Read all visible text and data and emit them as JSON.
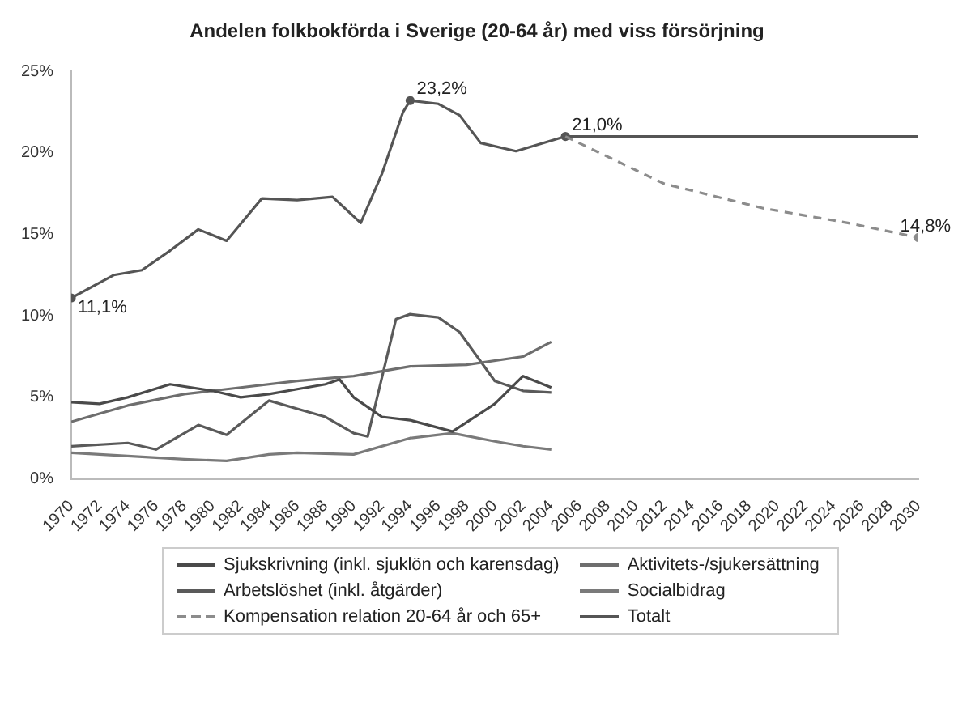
{
  "chart_data": {
    "type": "line",
    "title": "Andelen folkbokförda i Sverige (20-64 år) med viss försörjning",
    "series": [
      {
        "name": "Sjukskrivning (inkl. sjuklön och karensdag)",
        "color": "#4a4a4a",
        "x": [
          1970,
          1972,
          1974,
          1977,
          1980,
          1982,
          1984,
          1986,
          1988,
          1989,
          1990,
          1992,
          1994,
          1997,
          2000,
          2002,
          2004
        ],
        "values": [
          4.7,
          4.6,
          5.0,
          5.8,
          5.4,
          5.0,
          5.2,
          5.5,
          5.8,
          6.1,
          5.0,
          3.8,
          3.6,
          2.9,
          4.6,
          6.3,
          5.6
        ]
      },
      {
        "name": "Aktivitets-/sjukersättning",
        "color": "#6e6e6e",
        "x": [
          1970,
          1974,
          1978,
          1982,
          1986,
          1990,
          1994,
          1998,
          2002,
          2004
        ],
        "values": [
          3.5,
          4.5,
          5.2,
          5.6,
          6.0,
          6.3,
          6.9,
          7.0,
          7.5,
          8.4
        ]
      },
      {
        "name": "Arbetslöshet (inkl. åtgärder)",
        "color": "#5a5a5a",
        "x": [
          1970,
          1974,
          1976,
          1979,
          1981,
          1984,
          1986,
          1988,
          1990,
          1991,
          1993,
          1994,
          1996,
          1997.5,
          2000,
          2002,
          2004
        ],
        "values": [
          2.0,
          2.2,
          1.8,
          3.3,
          2.7,
          4.8,
          4.3,
          3.8,
          2.8,
          2.6,
          9.8,
          10.1,
          9.9,
          9.0,
          6.0,
          5.4,
          5.3
        ]
      },
      {
        "name": "Socialbidrag",
        "color": "#7a7a7a",
        "x": [
          1970,
          1974,
          1978,
          1981,
          1984,
          1986,
          1990,
          1994,
          1997,
          2000,
          2002,
          2004
        ],
        "values": [
          1.6,
          1.4,
          1.2,
          1.1,
          1.5,
          1.6,
          1.5,
          2.5,
          2.8,
          2.3,
          2.0,
          1.8
        ]
      },
      {
        "name": "Kompensation relation 20-64 år och 65+",
        "color": "#8c8c8c",
        "line_style": "dashed",
        "x": [
          2005,
          2012,
          2019,
          2025,
          2030
        ],
        "values": [
          21.0,
          18.1,
          16.6,
          15.7,
          14.8
        ],
        "value_labels": [
          null,
          null,
          null,
          null,
          "14,8%"
        ]
      },
      {
        "name": "Totalt",
        "color": "#555555",
        "x": [
          1970,
          1973,
          1975,
          1977,
          1979,
          1981,
          1983.5,
          1986,
          1988.5,
          1990.5,
          1992,
          1993.5,
          1994,
          1996,
          1997.5,
          1999,
          2001.5,
          2005,
          2030
        ],
        "values": [
          11.1,
          12.5,
          12.8,
          14.0,
          15.3,
          14.6,
          17.2,
          17.1,
          17.3,
          15.7,
          18.7,
          22.5,
          23.2,
          23.0,
          22.3,
          20.6,
          20.1,
          21.0,
          21.0
        ],
        "value_labels": [
          "11,1%",
          null,
          null,
          null,
          null,
          null,
          null,
          null,
          null,
          null,
          null,
          null,
          "23,2%",
          null,
          null,
          null,
          null,
          "21,0%",
          null
        ]
      }
    ],
    "xlim": [
      1970,
      2030
    ],
    "xticks": [
      1970,
      1972,
      1974,
      1976,
      1978,
      1980,
      1982,
      1984,
      1986,
      1988,
      1990,
      1992,
      1994,
      1996,
      1998,
      2000,
      2002,
      2004,
      2006,
      2008,
      2010,
      2012,
      2014,
      2016,
      2018,
      2020,
      2022,
      2024,
      2026,
      2028,
      2030
    ],
    "ylim": [
      0,
      25
    ],
    "yticks": [
      {
        "value": 0,
        "label": "0%"
      },
      {
        "value": 5,
        "label": "5%"
      },
      {
        "value": 10,
        "label": "10%"
      },
      {
        "value": 15,
        "label": "15%"
      },
      {
        "value": 20,
        "label": "20%"
      },
      {
        "value": 25,
        "label": "25%"
      }
    ],
    "line_style": "solid",
    "grid": false,
    "legend": "bottom"
  }
}
